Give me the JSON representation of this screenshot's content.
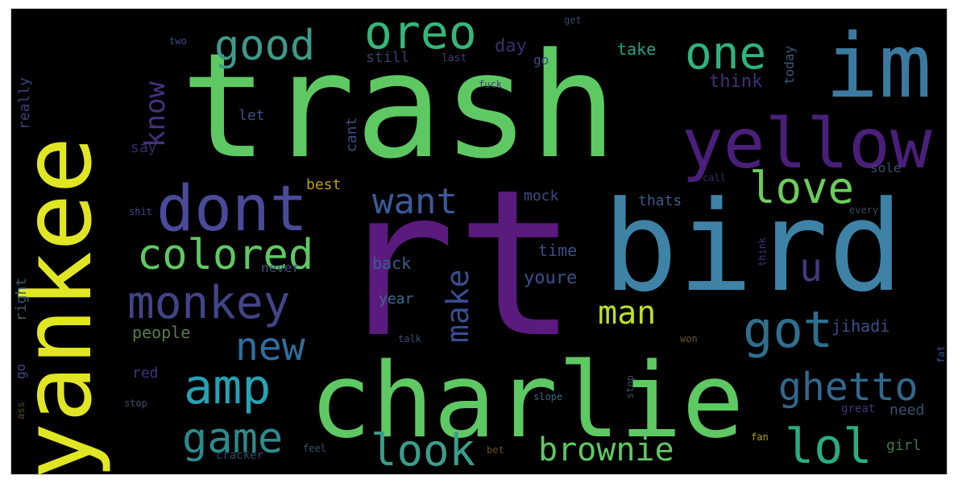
{
  "wordcloud": {
    "words": [
      {
        "text": "rt",
        "color": "#5b1a7e"
      },
      {
        "text": "trash",
        "color": "#5ec962"
      },
      {
        "text": "bird",
        "color": "#3e83a6"
      },
      {
        "text": "yankee",
        "color": "#e1e624"
      },
      {
        "text": "charlie",
        "color": "#5ec962"
      },
      {
        "text": "im",
        "color": "#3b7aa0"
      },
      {
        "text": "yellow",
        "color": "#4a1f7a"
      },
      {
        "text": "dont",
        "color": "#4a4a9a"
      },
      {
        "text": "oreo",
        "color": "#35b779"
      },
      {
        "text": "good",
        "color": "#3d9a8b"
      },
      {
        "text": "one",
        "color": "#2fb47c"
      },
      {
        "text": "colored",
        "color": "#5ec962"
      },
      {
        "text": "monkey",
        "color": "#414487"
      },
      {
        "text": "want",
        "color": "#3b5a9a"
      },
      {
        "text": "love",
        "color": "#6ccd5a"
      },
      {
        "text": "amp",
        "color": "#27a2b5"
      },
      {
        "text": "got",
        "color": "#2f6f8e"
      },
      {
        "text": "ghetto",
        "color": "#31688e"
      },
      {
        "text": "lol",
        "color": "#28ae80"
      },
      {
        "text": "brownie",
        "color": "#5ec962"
      },
      {
        "text": "look",
        "color": "#3a9d8a"
      },
      {
        "text": "game",
        "color": "#2c8b8c"
      },
      {
        "text": "man",
        "color": "#bddf26"
      },
      {
        "text": "make",
        "color": "#3a4d90"
      },
      {
        "text": "new",
        "color": "#2e6e9e"
      },
      {
        "text": "know",
        "color": "#46327e"
      },
      {
        "text": "u",
        "color": "#45387f"
      },
      {
        "text": "really",
        "color": "#3b3f7a"
      },
      {
        "text": "still",
        "color": "#34406f"
      },
      {
        "text": "day",
        "color": "#3b2d6b"
      },
      {
        "text": "take",
        "color": "#22a387"
      },
      {
        "text": "today",
        "color": "#3a5a7a"
      },
      {
        "text": "think",
        "color": "#472d7b"
      },
      {
        "text": "let",
        "color": "#3b4f7e"
      },
      {
        "text": "say",
        "color": "#3b2a6a"
      },
      {
        "text": "best",
        "color": "#c0a000"
      },
      {
        "text": "shit",
        "color": "#3d4a8a"
      },
      {
        "text": "mock",
        "color": "#3e4b89"
      },
      {
        "text": "thats",
        "color": "#3b5b8c"
      },
      {
        "text": "sole",
        "color": "#3a4b6c"
      },
      {
        "text": "cant",
        "color": "#3b4f7e"
      },
      {
        "text": "time",
        "color": "#3b4d89"
      },
      {
        "text": "back",
        "color": "#34618d"
      },
      {
        "text": "youre",
        "color": "#3b4f8e"
      },
      {
        "text": "never",
        "color": "#3e4f7e"
      },
      {
        "text": "year",
        "color": "#3a6d8b"
      },
      {
        "text": "people",
        "color": "#5c7a4a"
      },
      {
        "text": "right",
        "color": "#3b5a6a"
      },
      {
        "text": "go",
        "color": "#3e4a8a"
      },
      {
        "text": "red",
        "color": "#44337a"
      },
      {
        "text": "jihadi",
        "color": "#3a4f8c"
      },
      {
        "text": "need",
        "color": "#3b5070"
      },
      {
        "text": "girl",
        "color": "#3d7a4a"
      },
      {
        "text": "cracker",
        "color": "#2f4a6a"
      },
      {
        "text": "slope",
        "color": "#3b6a8a"
      },
      {
        "text": "fat",
        "color": "#3a4f8e"
      },
      {
        "text": "ass",
        "color": "#5a4a2a"
      },
      {
        "text": "last",
        "color": "#3b3f7a"
      },
      {
        "text": "fuck",
        "color": "#4b327a"
      },
      {
        "text": "great",
        "color": "#46327e"
      },
      {
        "text": "every",
        "color": "#3b4a5a"
      },
      {
        "text": "talk",
        "color": "#3b4f7e"
      },
      {
        "text": "fan",
        "color": "#b2a000"
      },
      {
        "text": "bet",
        "color": "#6a5020"
      },
      {
        "text": "feel",
        "color": "#2f5a6a"
      },
      {
        "text": "call",
        "color": "#3a2d6b"
      },
      {
        "text": "stop",
        "color": "#3a4f6e"
      },
      {
        "text": "won",
        "color": "#6a5a20"
      },
      {
        "text": "two",
        "color": "#3a4f8e"
      },
      {
        "text": "get",
        "color": "#2f4a6a"
      }
    ]
  }
}
